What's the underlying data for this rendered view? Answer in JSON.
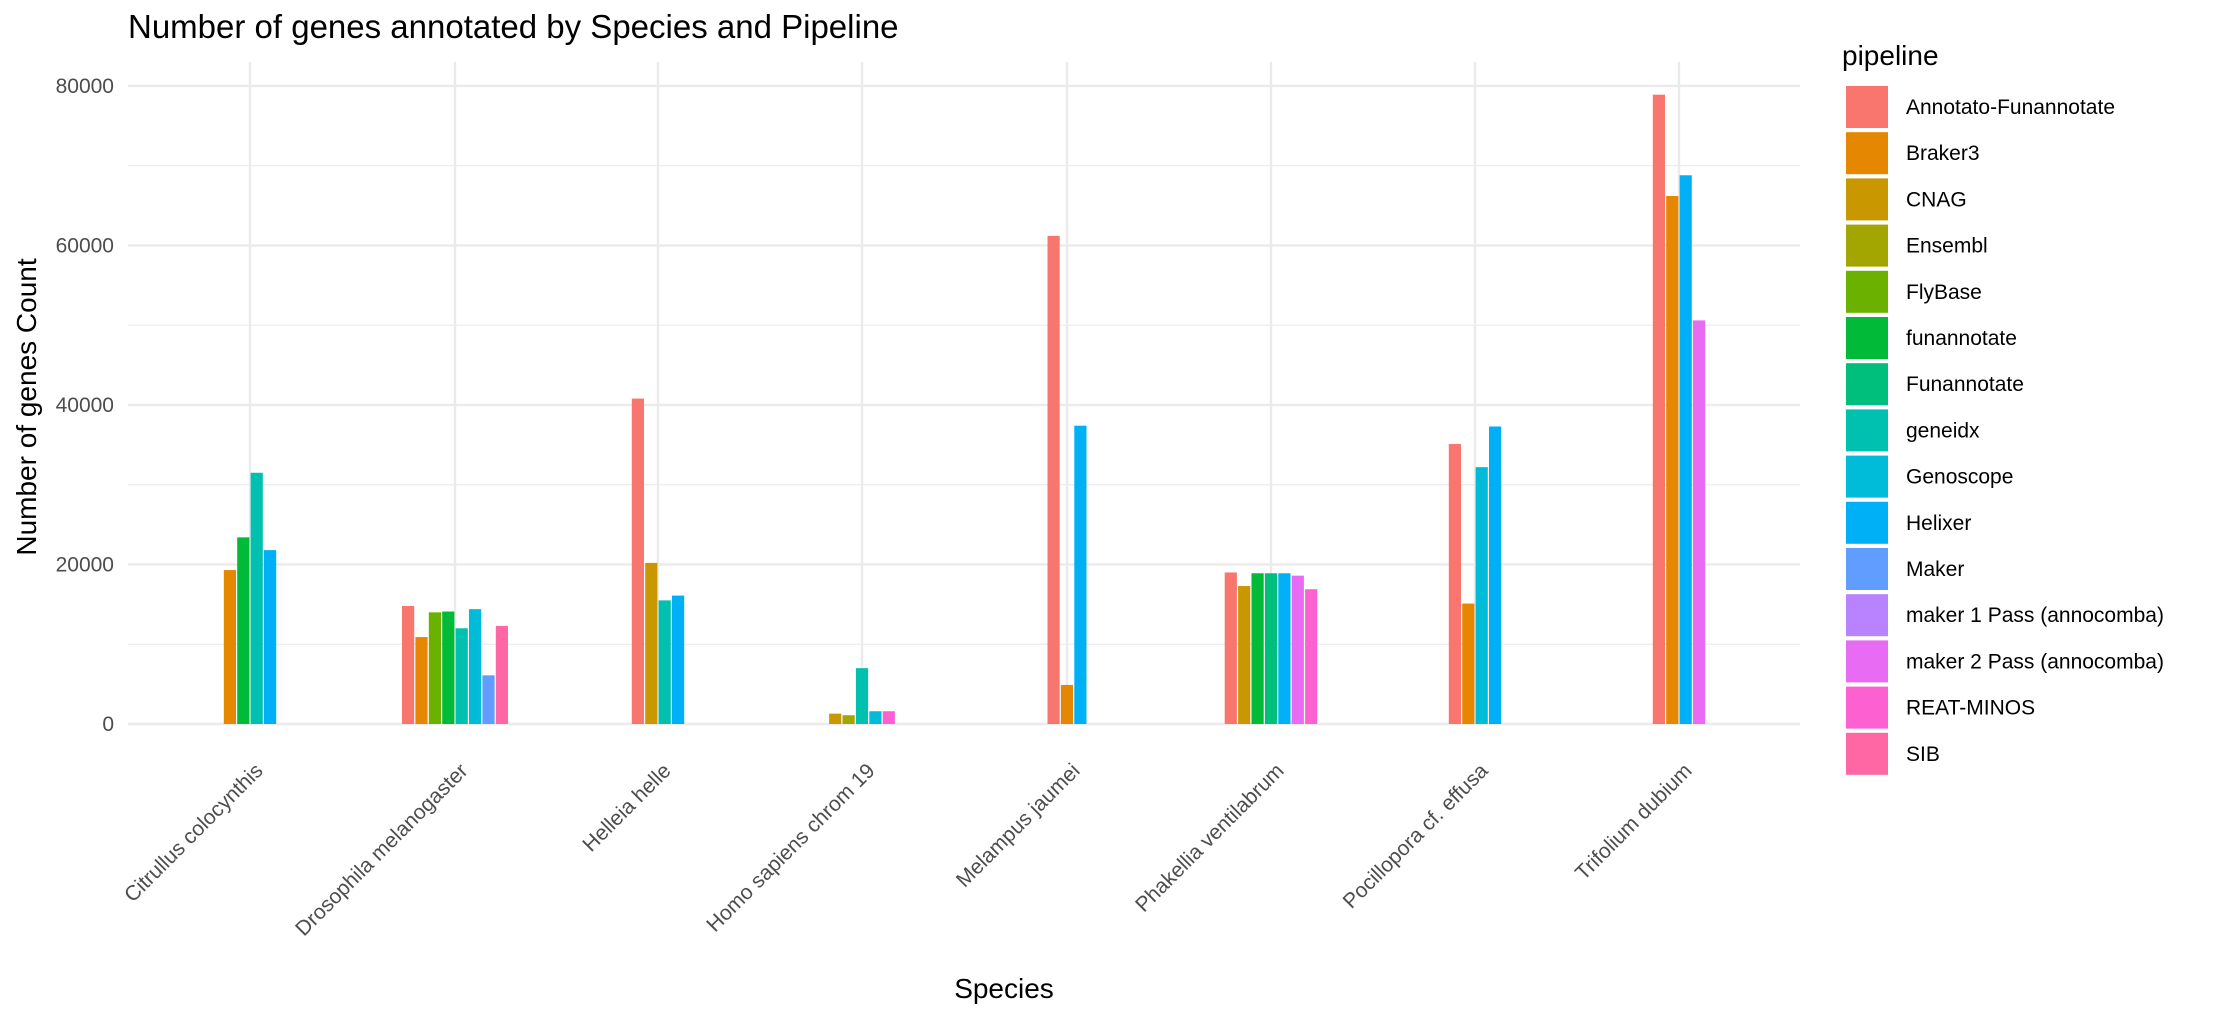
{
  "chart_data": {
    "type": "bar",
    "title": "Number of genes annotated by Species and Pipeline",
    "xlabel": "Species",
    "ylabel": "Number of genes Count",
    "ylim": [
      0,
      83000
    ],
    "yticks": [
      0,
      20000,
      40000,
      60000,
      80000
    ],
    "grid": true,
    "legend_title": "pipeline",
    "legend_position": "right",
    "categories": [
      "Citrullus colocynthis",
      "Drosophila melanogaster",
      "Helleia helle",
      "Homo sapiens chrom 19",
      "Melampus jaumei",
      "Phakellia ventilabrum",
      "Pocillopora cf. effusa",
      "Trifolium dubium"
    ],
    "series": [
      {
        "name": "Annotato-Funannotate",
        "color": "#F8766D",
        "values": [
          null,
          14800,
          40800,
          null,
          61200,
          19000,
          35100,
          78900
        ]
      },
      {
        "name": "Braker3",
        "color": "#E58700",
        "values": [
          19300,
          10900,
          null,
          null,
          4900,
          null,
          15100,
          66200
        ]
      },
      {
        "name": "CNAG",
        "color": "#C99800",
        "values": [
          null,
          null,
          20200,
          1300,
          null,
          17300,
          null,
          null
        ]
      },
      {
        "name": "Ensembl",
        "color": "#A3A500",
        "values": [
          null,
          null,
          null,
          1100,
          null,
          null,
          null,
          null
        ]
      },
      {
        "name": "FlyBase",
        "color": "#6BB100",
        "values": [
          null,
          14000,
          null,
          null,
          null,
          null,
          null,
          null
        ]
      },
      {
        "name": "funannotate",
        "color": "#00BA38",
        "values": [
          23400,
          14100,
          null,
          null,
          null,
          18900,
          null,
          null
        ]
      },
      {
        "name": "Funannotate",
        "color": "#00BF7D",
        "values": [
          null,
          null,
          null,
          null,
          null,
          18900,
          null,
          null
        ]
      },
      {
        "name": "geneidx",
        "color": "#00C0AF",
        "values": [
          31500,
          12000,
          15500,
          7000,
          null,
          null,
          null,
          null
        ]
      },
      {
        "name": "Genoscope",
        "color": "#00BCD8",
        "values": [
          null,
          14400,
          null,
          1600,
          null,
          null,
          32200,
          null
        ]
      },
      {
        "name": "Helixer",
        "color": "#00B0F6",
        "values": [
          21800,
          null,
          16100,
          null,
          37400,
          18900,
          37300,
          68800
        ]
      },
      {
        "name": "Maker",
        "color": "#619CFF",
        "values": [
          null,
          6100,
          null,
          null,
          null,
          null,
          null,
          null
        ]
      },
      {
        "name": "maker 1 Pass (annocomba)",
        "color": "#B983FF",
        "values": [
          null,
          null,
          null,
          null,
          null,
          null,
          null,
          null
        ]
      },
      {
        "name": "maker 2 Pass (annocomba)",
        "color": "#E76BF3",
        "values": [
          null,
          null,
          null,
          null,
          null,
          18600,
          null,
          50600
        ]
      },
      {
        "name": "REAT-MINOS",
        "color": "#FD61D1",
        "values": [
          null,
          null,
          null,
          1600,
          null,
          16900,
          null,
          null
        ]
      },
      {
        "name": "SIB",
        "color": "#FF67A4",
        "values": [
          null,
          12300,
          null,
          null,
          null,
          null,
          null,
          null
        ]
      }
    ]
  }
}
